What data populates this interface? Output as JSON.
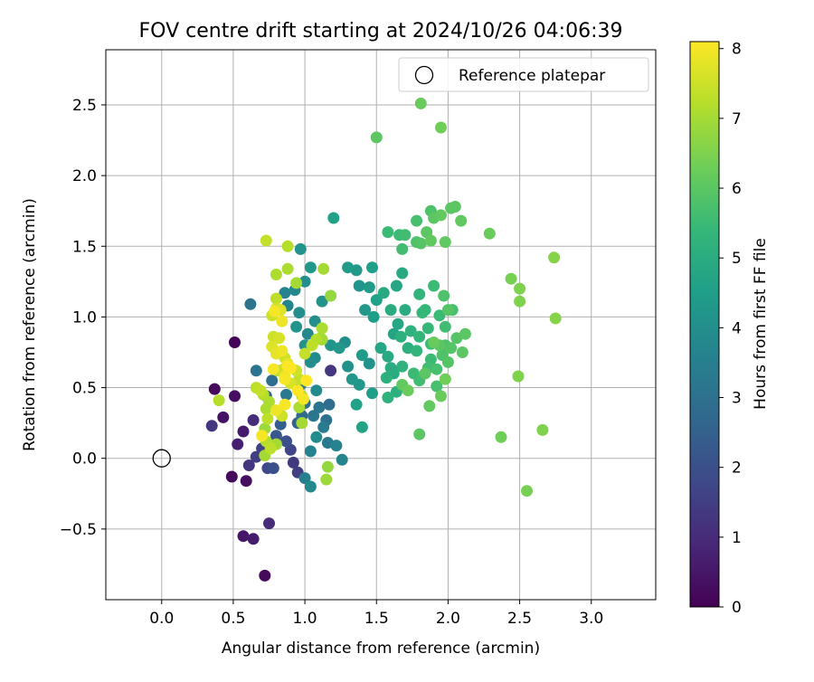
{
  "chart_data": {
    "type": "scatter",
    "title": "FOV centre drift starting at 2024/10/26 04:06:39",
    "xlabel": "Angular distance from reference (arcmin)",
    "ylabel": "Rotation from reference (arcmin)",
    "xlim": [
      -0.39,
      3.45
    ],
    "ylim": [
      -1.0,
      2.89
    ],
    "x_ticks": [
      0.0,
      0.5,
      1.0,
      1.5,
      2.0,
      2.5,
      3.0
    ],
    "x_tick_labels": [
      "0.0",
      "0.5",
      "1.0",
      "1.5",
      "2.0",
      "2.5",
      "3.0"
    ],
    "y_ticks": [
      -0.5,
      0.0,
      0.5,
      1.0,
      1.5,
      2.0,
      2.5
    ],
    "y_tick_labels": [
      "−0.5",
      "0.0",
      "0.5",
      "1.0",
      "1.5",
      "2.0",
      "2.5"
    ],
    "grid": true,
    "legend": {
      "location": "top-right",
      "entries": [
        {
          "label": "Reference platepar",
          "marker": "open-circle"
        }
      ]
    },
    "reference_point": {
      "x": 0.0,
      "y": 0.0
    },
    "colorbar": {
      "label": "Hours from first FF file",
      "colormap": "viridis",
      "range": [
        0,
        8.1
      ],
      "ticks": [
        0,
        1,
        2,
        3,
        4,
        5,
        6,
        7,
        8
      ],
      "tick_labels": [
        "0",
        "1",
        "2",
        "3",
        "4",
        "5",
        "6",
        "7",
        "8"
      ]
    },
    "colormap_stops": [
      "#440154",
      "#482878",
      "#3e4989",
      "#31688e",
      "#26828e",
      "#1f9e89",
      "#35b779",
      "#6ece58",
      "#b5de2b",
      "#fde725"
    ],
    "series": [
      {
        "points": [
          [
            0.72,
            -0.83,
            0.2
          ],
          [
            0.57,
            -0.55,
            0.5
          ],
          [
            0.64,
            -0.57,
            0.6
          ],
          [
            0.75,
            -0.46,
            1.0
          ],
          [
            0.49,
            -0.13,
            0.2
          ],
          [
            0.59,
            -0.16,
            0.3
          ],
          [
            0.51,
            0.82,
            0.1
          ],
          [
            0.37,
            0.49,
            0.2
          ],
          [
            0.51,
            0.44,
            0.3
          ],
          [
            0.43,
            0.29,
            0.4
          ],
          [
            0.35,
            0.23,
            1.3
          ],
          [
            0.57,
            0.19,
            0.6
          ],
          [
            0.53,
            0.1,
            0.7
          ],
          [
            0.61,
            -0.05,
            1.3
          ],
          [
            0.66,
            0.01,
            1.5
          ],
          [
            0.64,
            0.27,
            1.0
          ],
          [
            0.7,
            0.07,
            1.6
          ],
          [
            0.74,
            -0.07,
            1.8
          ],
          [
            0.78,
            -0.07,
            2.0
          ],
          [
            0.95,
            -0.1,
            1.5
          ],
          [
            0.92,
            -0.03,
            1.4
          ],
          [
            0.9,
            0.06,
            1.7
          ],
          [
            0.87,
            0.12,
            2.0
          ],
          [
            0.8,
            0.16,
            2.2
          ],
          [
            0.83,
            0.24,
            2.4
          ],
          [
            0.95,
            0.25,
            2.6
          ],
          [
            0.98,
            0.3,
            2.8
          ],
          [
            1.0,
            0.39,
            3.0
          ],
          [
            0.73,
            0.44,
            2.6
          ],
          [
            0.77,
            0.55,
            2.9
          ],
          [
            0.66,
            0.62,
            3.2
          ],
          [
            0.62,
            1.09,
            3.1
          ],
          [
            1.18,
            0.62,
            1.3
          ],
          [
            0.87,
            0.45,
            3.3
          ],
          [
            0.97,
            0.52,
            3.5
          ],
          [
            1.0,
            -0.14,
            3.5
          ],
          [
            1.04,
            -0.2,
            3.8
          ],
          [
            1.04,
            0.05,
            3.6
          ],
          [
            1.08,
            0.15,
            3.9
          ],
          [
            1.13,
            0.22,
            3.4
          ],
          [
            1.06,
            0.3,
            3.2
          ],
          [
            1.1,
            0.36,
            3.1
          ],
          [
            1.15,
            0.27,
            3.0
          ],
          [
            1.17,
            0.38,
            2.9
          ],
          [
            1.16,
            0.11,
            3.3
          ],
          [
            1.22,
            0.09,
            3.6
          ],
          [
            1.26,
            -0.01,
            3.7
          ],
          [
            1.08,
            0.48,
            3.9
          ],
          [
            1.04,
            0.68,
            4.0
          ],
          [
            1.07,
            0.71,
            3.9
          ],
          [
            1.0,
            0.8,
            4.1
          ],
          [
            1.02,
            0.88,
            3.8
          ],
          [
            0.94,
            0.93,
            4.2
          ],
          [
            0.96,
            1.03,
            4.0
          ],
          [
            0.88,
            1.08,
            3.7
          ],
          [
            0.86,
            1.17,
            3.6
          ],
          [
            0.93,
            1.19,
            3.8
          ],
          [
            1.0,
            1.25,
            4.0
          ],
          [
            0.97,
            1.48,
            4.2
          ],
          [
            1.04,
            1.35,
            4.3
          ],
          [
            1.12,
            1.11,
            4.1
          ],
          [
            1.07,
            0.97,
            4.0
          ],
          [
            1.18,
            0.8,
            4.2
          ],
          [
            1.24,
            0.78,
            4.3
          ],
          [
            1.28,
            0.82,
            4.0
          ],
          [
            1.3,
            0.65,
            4.1
          ],
          [
            1.33,
            0.56,
            4.3
          ],
          [
            1.3,
            1.35,
            4.4
          ],
          [
            1.36,
            1.33,
            4.3
          ],
          [
            1.38,
            1.22,
            4.2
          ],
          [
            1.47,
            1.35,
            4.5
          ],
          [
            1.45,
            1.21,
            4.4
          ],
          [
            1.5,
            1.12,
            4.6
          ],
          [
            1.42,
            1.05,
            4.3
          ],
          [
            1.48,
            1.0,
            4.5
          ],
          [
            1.4,
            0.73,
            4.4
          ],
          [
            1.45,
            0.67,
            4.2
          ],
          [
            1.38,
            0.52,
            4.3
          ],
          [
            1.47,
            0.46,
            4.5
          ],
          [
            1.36,
            0.38,
            4.6
          ],
          [
            1.4,
            0.22,
            4.7
          ],
          [
            1.2,
            1.7,
            4.6
          ],
          [
            1.53,
            0.78,
            4.8
          ],
          [
            1.58,
            0.72,
            4.9
          ],
          [
            1.6,
            0.64,
            5.0
          ],
          [
            1.57,
            0.57,
            5.1
          ],
          [
            1.62,
            0.88,
            4.7
          ],
          [
            1.65,
            0.95,
            4.8
          ],
          [
            1.55,
            1.17,
            4.9
          ],
          [
            1.6,
            1.05,
            5.0
          ],
          [
            1.64,
            1.22,
            4.8
          ],
          [
            1.68,
            1.31,
            4.9
          ],
          [
            1.7,
            1.05,
            5.0
          ],
          [
            1.67,
            0.86,
            5.1
          ],
          [
            1.62,
            0.6,
            5.0
          ],
          [
            1.64,
            0.47,
            5.1
          ],
          [
            1.58,
            0.43,
            5.2
          ],
          [
            1.68,
            0.65,
            5.2
          ],
          [
            1.72,
            0.78,
            5.1
          ],
          [
            1.74,
            0.9,
            5.2
          ],
          [
            1.78,
            0.76,
            5.3
          ],
          [
            1.8,
            0.86,
            5.3
          ],
          [
            1.82,
            1.03,
            5.4
          ],
          [
            1.8,
            1.16,
            5.3
          ],
          [
            1.84,
            1.05,
            5.4
          ],
          [
            1.86,
            0.92,
            5.4
          ],
          [
            1.88,
            0.81,
            5.5
          ],
          [
            1.88,
            0.7,
            5.5
          ],
          [
            1.76,
            0.6,
            5.5
          ],
          [
            1.8,
            0.55,
            5.6
          ],
          [
            1.86,
            0.64,
            5.6
          ],
          [
            1.92,
            0.51,
            5.7
          ],
          [
            1.92,
            0.63,
            5.7
          ],
          [
            1.96,
            0.73,
            5.8
          ],
          [
            1.98,
            0.8,
            5.8
          ],
          [
            2.02,
            0.78,
            5.9
          ],
          [
            2.0,
            0.68,
            5.9
          ],
          [
            2.06,
            0.85,
            5.9
          ],
          [
            2.12,
            0.88,
            6.0
          ],
          [
            2.1,
            0.75,
            6.0
          ],
          [
            1.98,
            0.93,
            5.6
          ],
          [
            1.94,
            1.01,
            5.5
          ],
          [
            1.9,
            1.22,
            5.5
          ],
          [
            2.03,
            1.05,
            5.7
          ],
          [
            1.97,
            1.15,
            5.8
          ],
          [
            2.0,
            1.05,
            5.9
          ],
          [
            2.05,
            1.78,
            6.0
          ],
          [
            2.02,
            1.77,
            6.0
          ],
          [
            1.95,
            1.72,
            6.1
          ],
          [
            1.9,
            1.7,
            6.0
          ],
          [
            1.88,
            1.75,
            5.8
          ],
          [
            1.78,
            1.68,
            5.7
          ],
          [
            1.7,
            1.58,
            5.6
          ],
          [
            1.66,
            1.58,
            5.5
          ],
          [
            1.58,
            1.6,
            5.5
          ],
          [
            1.68,
            1.48,
            5.6
          ],
          [
            1.78,
            1.53,
            5.8
          ],
          [
            1.81,
            1.52,
            5.9
          ],
          [
            1.85,
            1.6,
            6.0
          ],
          [
            1.88,
            1.54,
            6.1
          ],
          [
            1.98,
            1.53,
            6.1
          ],
          [
            2.09,
            1.68,
            6.1
          ],
          [
            2.29,
            1.59,
            6.2
          ],
          [
            1.81,
            2.51,
            6.2
          ],
          [
            1.95,
            2.34,
            6.3
          ],
          [
            1.5,
            2.27,
            6.0
          ],
          [
            2.44,
            1.27,
            6.4
          ],
          [
            2.5,
            1.2,
            6.5
          ],
          [
            2.5,
            1.11,
            6.5
          ],
          [
            2.74,
            1.42,
            6.6
          ],
          [
            2.75,
            0.99,
            6.6
          ],
          [
            2.49,
            0.58,
            6.5
          ],
          [
            2.37,
            0.15,
            6.3
          ],
          [
            2.66,
            0.2,
            6.5
          ],
          [
            2.55,
            -0.23,
            6.4
          ],
          [
            1.8,
            0.17,
            6.0
          ],
          [
            1.87,
            0.37,
            6.1
          ],
          [
            1.95,
            0.44,
            6.2
          ],
          [
            1.98,
            0.56,
            6.3
          ],
          [
            1.72,
            0.48,
            6.2
          ],
          [
            1.68,
            0.52,
            6.1
          ],
          [
            1.9,
            0.82,
            6.2
          ],
          [
            1.94,
            0.8,
            6.0
          ],
          [
            1.84,
            0.6,
            6.0
          ],
          [
            1.15,
            -0.15,
            6.9
          ],
          [
            1.16,
            -0.06,
            6.8
          ],
          [
            1.12,
            0.84,
            6.9
          ],
          [
            1.18,
            1.15,
            6.8
          ],
          [
            1.13,
            1.34,
            7.0
          ],
          [
            1.11,
            0.85,
            7.0
          ],
          [
            1.12,
            0.92,
            7.1
          ],
          [
            1.08,
            0.84,
            7.2
          ],
          [
            1.05,
            0.8,
            7.3
          ],
          [
            1.0,
            0.74,
            7.4
          ],
          [
            0.88,
            1.5,
            7.2
          ],
          [
            0.73,
            1.54,
            7.4
          ],
          [
            0.88,
            1.34,
            7.1
          ],
          [
            0.94,
            1.24,
            7.0
          ],
          [
            0.8,
            1.13,
            7.3
          ],
          [
            0.77,
            1.01,
            7.5
          ],
          [
            0.8,
            1.06,
            7.6
          ],
          [
            0.83,
            1.05,
            7.7
          ],
          [
            0.78,
            0.86,
            7.5
          ],
          [
            0.82,
            0.85,
            7.6
          ],
          [
            0.77,
            0.79,
            7.7
          ],
          [
            0.8,
            0.74,
            7.8
          ],
          [
            0.84,
            0.76,
            7.9
          ],
          [
            0.86,
            0.71,
            7.5
          ],
          [
            0.81,
            0.62,
            7.3
          ],
          [
            0.85,
            0.63,
            7.4
          ],
          [
            0.88,
            0.67,
            7.8
          ],
          [
            0.86,
            0.58,
            7.9
          ],
          [
            0.9,
            0.53,
            7.6
          ],
          [
            0.94,
            0.62,
            7.5
          ],
          [
            0.96,
            0.56,
            7.4
          ],
          [
            0.98,
            0.44,
            7.2
          ],
          [
            0.96,
            0.36,
            7.1
          ],
          [
            0.98,
            0.25,
            7.0
          ],
          [
            0.73,
            0.35,
            7.1
          ],
          [
            0.72,
            0.21,
            6.9
          ],
          [
            0.73,
            0.12,
            7.2
          ],
          [
            0.72,
            0.02,
            7.0
          ],
          [
            0.76,
            0.07,
            7.3
          ],
          [
            0.8,
            0.1,
            7.0
          ],
          [
            0.69,
            0.48,
            7.4
          ],
          [
            0.66,
            0.5,
            7.3
          ],
          [
            0.71,
            0.45,
            7.2
          ],
          [
            0.75,
            0.4,
            7.1
          ],
          [
            0.84,
            0.3,
            7.5
          ],
          [
            0.74,
            0.28,
            7.3
          ],
          [
            0.4,
            0.41,
            7.2
          ],
          [
            0.8,
            1.3,
            7.1
          ],
          [
            0.86,
            0.56,
            8.0
          ],
          [
            0.99,
            0.42,
            8.0
          ],
          [
            0.95,
            0.48,
            8.1
          ],
          [
            0.86,
            0.38,
            8.0
          ],
          [
            0.8,
            0.34,
            7.9
          ],
          [
            0.7,
            0.16,
            8.0
          ],
          [
            0.79,
            1.04,
            8.0
          ],
          [
            0.84,
            0.97,
            7.9
          ],
          [
            0.9,
            0.64,
            8.1
          ],
          [
            0.78,
            0.63,
            8.0
          ],
          [
            1.01,
            0.55,
            8.1
          ],
          [
            0.88,
            0.65,
            8.1
          ]
        ]
      }
    ]
  }
}
